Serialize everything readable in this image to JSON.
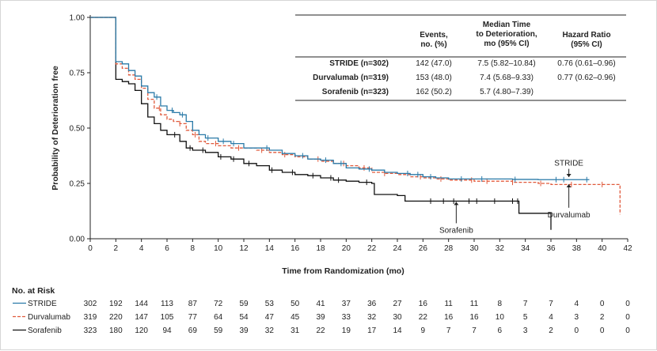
{
  "chart_data": {
    "type": "line",
    "subtype": "kaplan-meier",
    "xlabel": "Time from Randomization (mo)",
    "ylabel": "Probability of Deterioration free",
    "xlim": [
      0,
      42
    ],
    "ylim": [
      0,
      1
    ],
    "xticks": [
      "0",
      "2",
      "4",
      "6",
      "8",
      "10",
      "12",
      "14",
      "16",
      "18",
      "20",
      "22",
      "24",
      "26",
      "28",
      "30",
      "32",
      "34",
      "36",
      "38",
      "40",
      "42"
    ],
    "yticks": [
      "0.00",
      "0.25",
      "0.50",
      "0.75",
      "1.00"
    ],
    "grid": false,
    "series": [
      {
        "name": "STRIDE",
        "color": "#2a7aa8",
        "dash": "solid",
        "points": [
          [
            0,
            1
          ],
          [
            1.8,
            1
          ],
          [
            2,
            0.8
          ],
          [
            2.5,
            0.79
          ],
          [
            3,
            0.76
          ],
          [
            3.5,
            0.735
          ],
          [
            4,
            0.69
          ],
          [
            4.5,
            0.66
          ],
          [
            5,
            0.64
          ],
          [
            5.5,
            0.6
          ],
          [
            6,
            0.58
          ],
          [
            6.5,
            0.57
          ],
          [
            7,
            0.56
          ],
          [
            7.5,
            0.53
          ],
          [
            8,
            0.49
          ],
          [
            8.5,
            0.47
          ],
          [
            9,
            0.455
          ],
          [
            10,
            0.44
          ],
          [
            11,
            0.43
          ],
          [
            12,
            0.41
          ],
          [
            13,
            0.41
          ],
          [
            14,
            0.4
          ],
          [
            15,
            0.385
          ],
          [
            16,
            0.375
          ],
          [
            17,
            0.36
          ],
          [
            18,
            0.355
          ],
          [
            19,
            0.34
          ],
          [
            20,
            0.32
          ],
          [
            21,
            0.315
          ],
          [
            22,
            0.31
          ],
          [
            23,
            0.3
          ],
          [
            24,
            0.295
          ],
          [
            25,
            0.29
          ],
          [
            26,
            0.28
          ],
          [
            27,
            0.275
          ],
          [
            28,
            0.27
          ],
          [
            30,
            0.27
          ],
          [
            32,
            0.27
          ],
          [
            33,
            0.268
          ],
          [
            35,
            0.267
          ],
          [
            38,
            0.267
          ],
          [
            39,
            0.267
          ]
        ],
        "censors": [
          5.2,
          6.4,
          7.2,
          9.2,
          10.4,
          11.2,
          13.8,
          16.6,
          18.4,
          19.6,
          21.8,
          24.8,
          25.6,
          26.6,
          29.0,
          30.6,
          33.2,
          36.4,
          37.0,
          38.8
        ]
      },
      {
        "name": "Durvalumab",
        "color": "#e05a3c",
        "dash": "4,2",
        "points": [
          [
            0,
            1
          ],
          [
            1.8,
            1
          ],
          [
            2,
            0.79
          ],
          [
            2.5,
            0.77
          ],
          [
            3,
            0.74
          ],
          [
            3.5,
            0.72
          ],
          [
            4,
            0.68
          ],
          [
            4.5,
            0.63
          ],
          [
            5,
            0.59
          ],
          [
            5.5,
            0.56
          ],
          [
            6,
            0.54
          ],
          [
            6.5,
            0.53
          ],
          [
            7,
            0.52
          ],
          [
            7.5,
            0.49
          ],
          [
            8,
            0.47
          ],
          [
            8.5,
            0.44
          ],
          [
            9,
            0.43
          ],
          [
            10,
            0.42
          ],
          [
            11,
            0.41
          ],
          [
            12,
            0.41
          ],
          [
            13,
            0.4
          ],
          [
            14,
            0.39
          ],
          [
            15,
            0.38
          ],
          [
            16,
            0.37
          ],
          [
            17,
            0.36
          ],
          [
            18,
            0.35
          ],
          [
            19,
            0.34
          ],
          [
            20,
            0.33
          ],
          [
            21,
            0.32
          ],
          [
            22,
            0.3
          ],
          [
            23,
            0.295
          ],
          [
            24,
            0.29
          ],
          [
            25,
            0.28
          ],
          [
            26,
            0.275
          ],
          [
            27,
            0.27
          ],
          [
            28,
            0.265
          ],
          [
            30,
            0.26
          ],
          [
            31,
            0.26
          ],
          [
            32,
            0.26
          ],
          [
            33,
            0.255
          ],
          [
            35,
            0.25
          ],
          [
            36,
            0.245
          ],
          [
            38,
            0.245
          ],
          [
            40,
            0.245
          ],
          [
            41.3,
            0.245
          ],
          [
            41.4,
            0.11
          ]
        ],
        "censors": [
          5.4,
          7.0,
          8.2,
          9.8,
          11.6,
          13.4,
          15.2,
          17.8,
          19.8,
          21.4,
          23.0,
          25.8,
          27.4,
          29.8,
          31.0,
          33.0,
          35.2,
          37.6,
          40.0
        ]
      },
      {
        "name": "Sorafenib",
        "color": "#111111",
        "dash": "solid",
        "points": [
          [
            0,
            1
          ],
          [
            1.8,
            1
          ],
          [
            2,
            0.72
          ],
          [
            2.5,
            0.71
          ],
          [
            3,
            0.7
          ],
          [
            3.5,
            0.67
          ],
          [
            4,
            0.61
          ],
          [
            4.5,
            0.55
          ],
          [
            5,
            0.52
          ],
          [
            5.5,
            0.49
          ],
          [
            6,
            0.47
          ],
          [
            7,
            0.44
          ],
          [
            7.5,
            0.41
          ],
          [
            8,
            0.4
          ],
          [
            9,
            0.39
          ],
          [
            10,
            0.37
          ],
          [
            11,
            0.36
          ],
          [
            12,
            0.34
          ],
          [
            13,
            0.33
          ],
          [
            14,
            0.31
          ],
          [
            15,
            0.3
          ],
          [
            16,
            0.29
          ],
          [
            17,
            0.285
          ],
          [
            18,
            0.275
          ],
          [
            19,
            0.265
          ],
          [
            20,
            0.26
          ],
          [
            21,
            0.255
          ],
          [
            22,
            0.25
          ],
          [
            22.2,
            0.2
          ],
          [
            23,
            0.2
          ],
          [
            24,
            0.195
          ],
          [
            24.6,
            0.17
          ],
          [
            26,
            0.17
          ],
          [
            28,
            0.17
          ],
          [
            30,
            0.17
          ],
          [
            32,
            0.17
          ],
          [
            33.4,
            0.17
          ],
          [
            33.5,
            0.115
          ],
          [
            35,
            0.115
          ],
          [
            35.9,
            0.115
          ],
          [
            36,
            0.04
          ]
        ],
        "censors": [
          6.6,
          7.8,
          8.8,
          10.2,
          11.2,
          12.4,
          14.2,
          15.8,
          17.4,
          18.8,
          19.4,
          21.6,
          26.6,
          27.6,
          28.4,
          29.6,
          30.2,
          31.6,
          33.0,
          33.4
        ]
      }
    ],
    "legend": {
      "placement": "top-right",
      "headers": [
        "",
        "Events, no. (%)",
        "Median Time to Deterioration, mo (95% CI)",
        "Hazard Ratio (95% CI)"
      ],
      "rows": [
        [
          "STRIDE (n=302)",
          "142 (47.0)",
          "7.5 (5.82–10.84)",
          "0.76 (0.61–0.96)"
        ],
        [
          "Durvalumab (n=319)",
          "153 (48.0)",
          "7.4 (5.68–9.33)",
          "0.77 (0.62–0.96)"
        ],
        [
          "Sorafenib (n=323)",
          "162 (50.2)",
          "5.7 (4.80–7.39)",
          ""
        ]
      ]
    },
    "annotations": [
      {
        "text": "STRIDE",
        "x": 37.4,
        "y": 0.33,
        "arrow_to": [
          37.4,
          0.275
        ]
      },
      {
        "text": "Durvalumab",
        "x": 37.4,
        "y": 0.14,
        "arrow_to": [
          37.4,
          0.25
        ]
      },
      {
        "text": "Sorafenib",
        "x": 28.6,
        "y": 0.07,
        "arrow_to": [
          28.6,
          0.17
        ]
      }
    ],
    "risk_table": {
      "title": "No. at Risk",
      "rows": [
        {
          "name": "STRIDE",
          "values": [
            302,
            192,
            144,
            113,
            87,
            72,
            59,
            53,
            50,
            41,
            37,
            36,
            27,
            16,
            11,
            11,
            8,
            7,
            7,
            4,
            0,
            0
          ]
        },
        {
          "name": "Durvalumab",
          "values": [
            319,
            220,
            147,
            105,
            77,
            64,
            54,
            47,
            45,
            39,
            33,
            32,
            30,
            22,
            16,
            16,
            10,
            5,
            4,
            3,
            2,
            0
          ]
        },
        {
          "name": "Sorafenib",
          "values": [
            323,
            180,
            120,
            94,
            69,
            59,
            39,
            32,
            31,
            22,
            19,
            17,
            14,
            9,
            7,
            7,
            6,
            3,
            2,
            0,
            0,
            0
          ]
        }
      ]
    }
  }
}
